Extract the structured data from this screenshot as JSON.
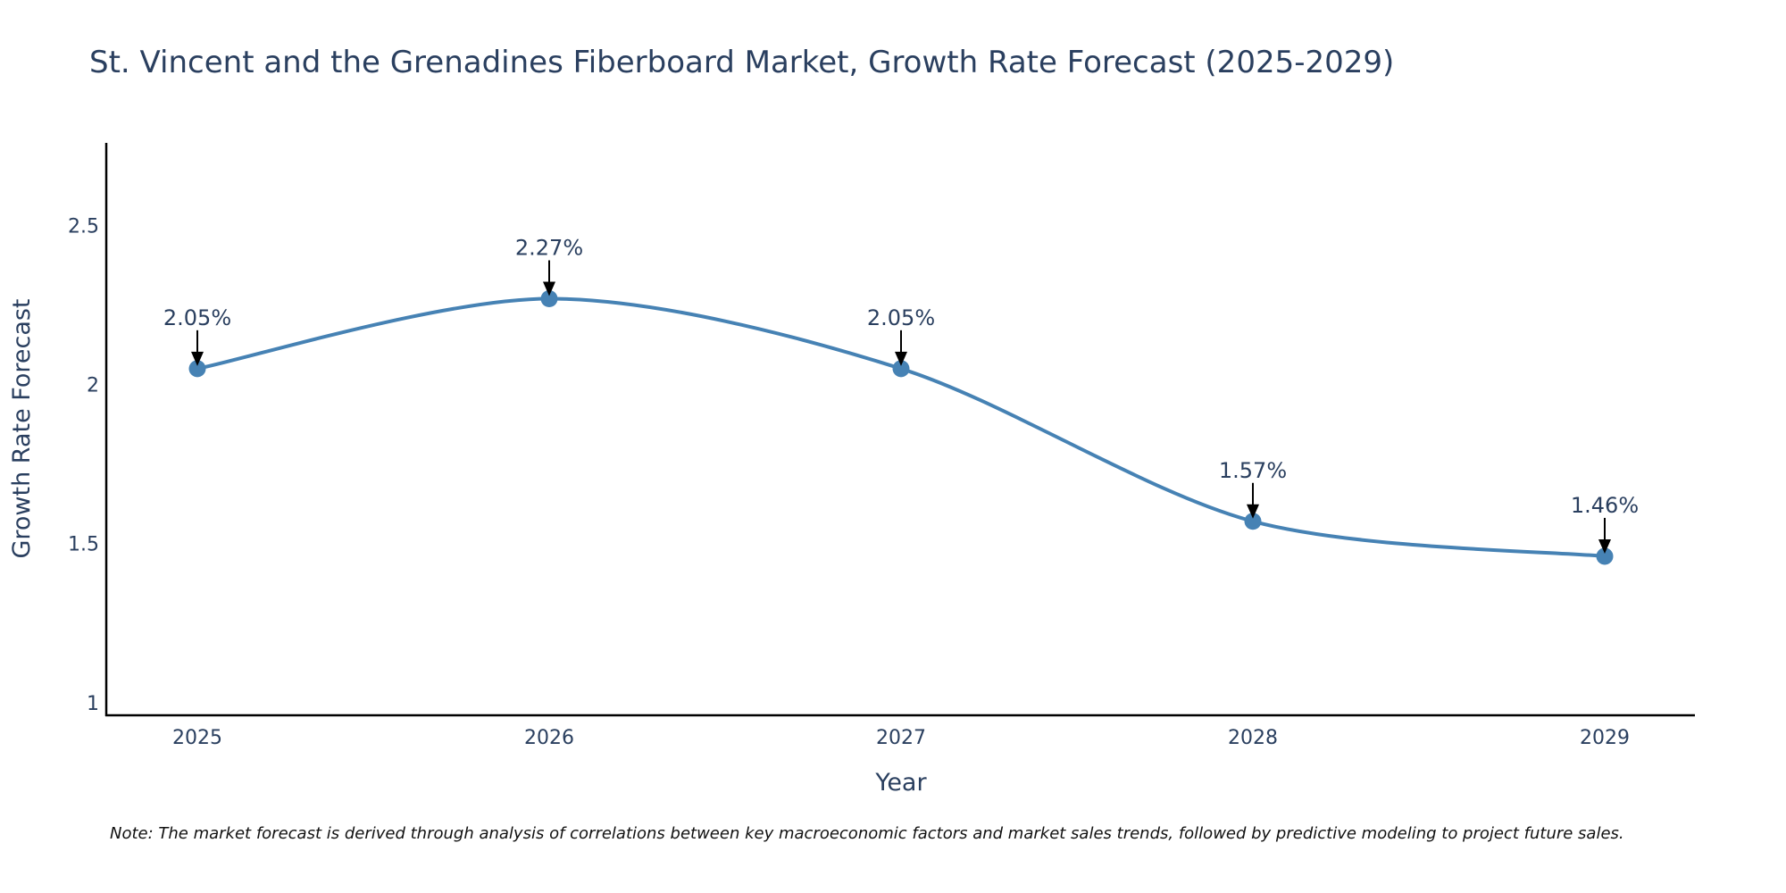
{
  "chart_data": {
    "type": "line",
    "title": "St. Vincent and the Grenadines Fiberboard Market, Growth Rate Forecast (2025-2029)",
    "xlabel": "Year",
    "ylabel": "Growth Rate Forecast",
    "categories": [
      "2025",
      "2026",
      "2027",
      "2028",
      "2029"
    ],
    "values": [
      2.05,
      2.27,
      2.05,
      1.57,
      1.46
    ],
    "labels": [
      "2.05%",
      "2.27%",
      "2.05%",
      "1.57%",
      "1.46%"
    ],
    "ylim": [
      0.96,
      2.76
    ],
    "yticks": [
      1,
      1.5,
      2,
      2.5
    ],
    "ytick_labels": [
      "1",
      "1.5",
      "2",
      "2.5"
    ],
    "grid": false,
    "line_color": "#4682b4",
    "marker_color": "#4682b4",
    "annotation_color": "#000000",
    "note": "Note: The market forecast is derived through analysis of correlations between key macroeconomic factors and market sales trends, followed by predictive modeling to project future sales."
  }
}
